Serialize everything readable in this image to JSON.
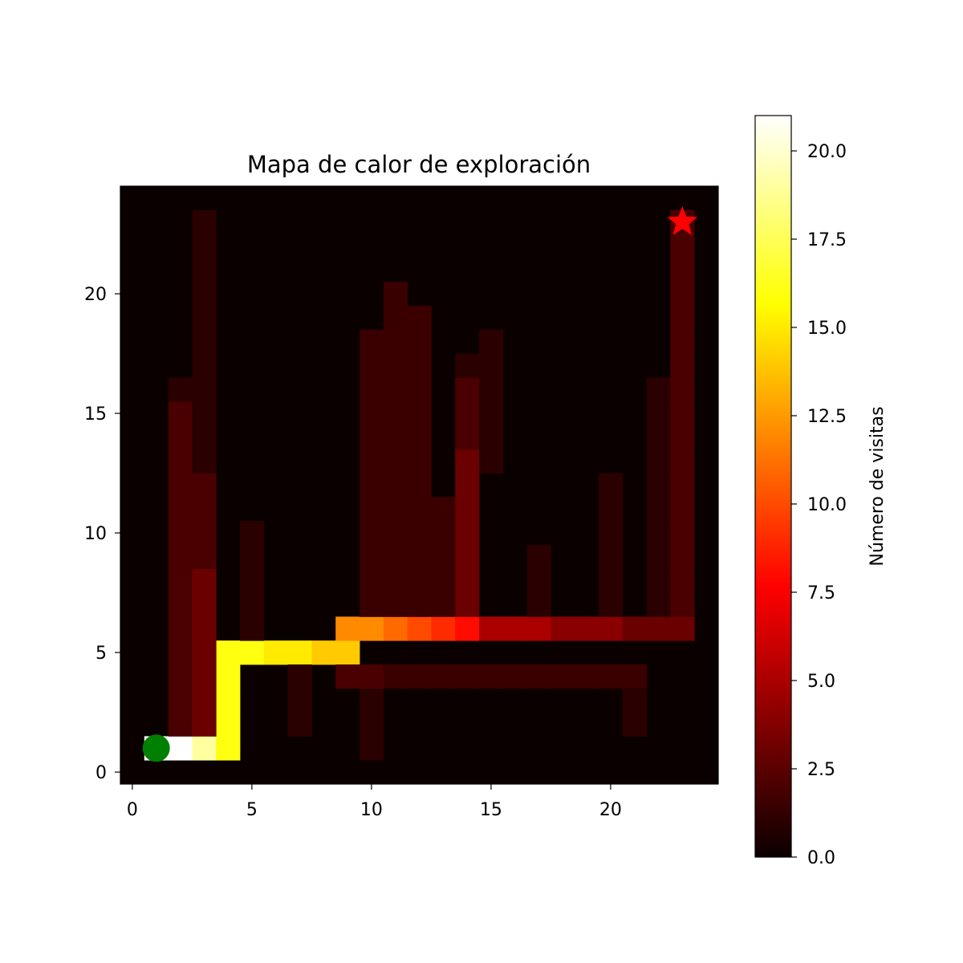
{
  "chart_data": {
    "type": "heatmap",
    "title": "Mapa de calor de exploración",
    "xlabel": "",
    "ylabel": "",
    "xlim": [
      -0.5,
      24.5
    ],
    "ylim": [
      -0.5,
      24.5
    ],
    "x_ticks": [
      0,
      5,
      10,
      15,
      20
    ],
    "y_ticks": [
      0,
      5,
      10,
      15,
      20
    ],
    "x_tick_labels": [
      "0",
      "5",
      "10",
      "15",
      "20"
    ],
    "y_tick_labels": [
      "0",
      "5",
      "10",
      "15",
      "20"
    ],
    "colormap": "hot",
    "vmin": 0,
    "vmax": 21,
    "colorbar": {
      "label": "Número de visitas",
      "ticks": [
        0.0,
        2.5,
        5.0,
        7.5,
        10.0,
        12.5,
        15.0,
        17.5,
        20.0
      ],
      "tick_labels": [
        "0.0",
        "2.5",
        "5.0",
        "7.5",
        "10.0",
        "12.5",
        "15.0",
        "17.5",
        "20.0"
      ]
    },
    "background_value": 0,
    "cells": [
      {
        "x": 1,
        "y": 1,
        "v": 21
      },
      {
        "x": 2,
        "y": 1,
        "v": 21
      },
      {
        "x": 3,
        "y": 1,
        "v": 19
      },
      {
        "x": 4,
        "y": 1,
        "v": 16
      },
      {
        "x": 4,
        "y": 2,
        "v": 16
      },
      {
        "x": 4,
        "y": 3,
        "v": 16
      },
      {
        "x": 4,
        "y": 4,
        "v": 16
      },
      {
        "x": 4,
        "y": 5,
        "v": 16
      },
      {
        "x": 5,
        "y": 5,
        "v": 16
      },
      {
        "x": 6,
        "y": 5,
        "v": 15
      },
      {
        "x": 7,
        "y": 5,
        "v": 15
      },
      {
        "x": 8,
        "y": 5,
        "v": 14
      },
      {
        "x": 9,
        "y": 5,
        "v": 14
      },
      {
        "x": 9,
        "y": 6,
        "v": 12
      },
      {
        "x": 10,
        "y": 6,
        "v": 12
      },
      {
        "x": 11,
        "y": 6,
        "v": 11
      },
      {
        "x": 12,
        "y": 6,
        "v": 10
      },
      {
        "x": 13,
        "y": 6,
        "v": 9
      },
      {
        "x": 14,
        "y": 6,
        "v": 8
      },
      {
        "x": 15,
        "y": 6,
        "v": 5
      },
      {
        "x": 16,
        "y": 6,
        "v": 5
      },
      {
        "x": 17,
        "y": 6,
        "v": 5
      },
      {
        "x": 18,
        "y": 6,
        "v": 4
      },
      {
        "x": 19,
        "y": 6,
        "v": 4
      },
      {
        "x": 20,
        "y": 6,
        "v": 4
      },
      {
        "x": 21,
        "y": 6,
        "v": 3
      },
      {
        "x": 22,
        "y": 6,
        "v": 3
      },
      {
        "x": 23,
        "y": 6,
        "v": 3
      },
      {
        "x": 2,
        "y": 2,
        "v": 2
      },
      {
        "x": 2,
        "y": 3,
        "v": 2
      },
      {
        "x": 2,
        "y": 4,
        "v": 2
      },
      {
        "x": 2,
        "y": 5,
        "v": 2
      },
      {
        "x": 2,
        "y": 6,
        "v": 2
      },
      {
        "x": 2,
        "y": 7,
        "v": 2
      },
      {
        "x": 2,
        "y": 8,
        "v": 2
      },
      {
        "x": 2,
        "y": 9,
        "v": 2
      },
      {
        "x": 2,
        "y": 10,
        "v": 2
      },
      {
        "x": 2,
        "y": 11,
        "v": 2
      },
      {
        "x": 2,
        "y": 12,
        "v": 2
      },
      {
        "x": 2,
        "y": 13,
        "v": 2
      },
      {
        "x": 2,
        "y": 14,
        "v": 2
      },
      {
        "x": 2,
        "y": 15,
        "v": 2
      },
      {
        "x": 2,
        "y": 16,
        "v": 1
      },
      {
        "x": 3,
        "y": 2,
        "v": 3
      },
      {
        "x": 3,
        "y": 3,
        "v": 3
      },
      {
        "x": 3,
        "y": 4,
        "v": 3
      },
      {
        "x": 3,
        "y": 5,
        "v": 3
      },
      {
        "x": 3,
        "y": 6,
        "v": 3
      },
      {
        "x": 3,
        "y": 7,
        "v": 3
      },
      {
        "x": 3,
        "y": 8,
        "v": 3
      },
      {
        "x": 3,
        "y": 9,
        "v": 2
      },
      {
        "x": 3,
        "y": 10,
        "v": 2
      },
      {
        "x": 3,
        "y": 11,
        "v": 2
      },
      {
        "x": 3,
        "y": 12,
        "v": 2
      },
      {
        "x": 3,
        "y": 13,
        "v": 1
      },
      {
        "x": 3,
        "y": 14,
        "v": 1
      },
      {
        "x": 3,
        "y": 15,
        "v": 1
      },
      {
        "x": 3,
        "y": 16,
        "v": 1
      },
      {
        "x": 3,
        "y": 17,
        "v": 1
      },
      {
        "x": 3,
        "y": 18,
        "v": 1
      },
      {
        "x": 3,
        "y": 19,
        "v": 1
      },
      {
        "x": 3,
        "y": 20,
        "v": 1
      },
      {
        "x": 3,
        "y": 21,
        "v": 1
      },
      {
        "x": 3,
        "y": 22,
        "v": 1
      },
      {
        "x": 3,
        "y": 23,
        "v": 1
      },
      {
        "x": 5,
        "y": 6,
        "v": 1
      },
      {
        "x": 5,
        "y": 7,
        "v": 1
      },
      {
        "x": 5,
        "y": 8,
        "v": 1
      },
      {
        "x": 5,
        "y": 9,
        "v": 1
      },
      {
        "x": 5,
        "y": 10,
        "v": 1
      },
      {
        "x": 7,
        "y": 2,
        "v": 1
      },
      {
        "x": 7,
        "y": 3,
        "v": 1
      },
      {
        "x": 7,
        "y": 4,
        "v": 1
      },
      {
        "x": 10,
        "y": 1,
        "v": 1
      },
      {
        "x": 10,
        "y": 2,
        "v": 1
      },
      {
        "x": 10,
        "y": 3,
        "v": 1
      },
      {
        "x": 9,
        "y": 4,
        "v": 2
      },
      {
        "x": 10,
        "y": 4,
        "v": 2
      },
      {
        "x": 11,
        "y": 4,
        "v": 1.5
      },
      {
        "x": 12,
        "y": 4,
        "v": 1.5
      },
      {
        "x": 13,
        "y": 4,
        "v": 1.5
      },
      {
        "x": 14,
        "y": 4,
        "v": 1.5
      },
      {
        "x": 15,
        "y": 4,
        "v": 1.5
      },
      {
        "x": 16,
        "y": 4,
        "v": 1.5
      },
      {
        "x": 17,
        "y": 4,
        "v": 1.5
      },
      {
        "x": 18,
        "y": 4,
        "v": 1.5
      },
      {
        "x": 19,
        "y": 4,
        "v": 1.5
      },
      {
        "x": 20,
        "y": 4,
        "v": 1.5
      },
      {
        "x": 21,
        "y": 4,
        "v": 1.5
      },
      {
        "x": 21,
        "y": 2,
        "v": 1
      },
      {
        "x": 21,
        "y": 3,
        "v": 1
      },
      {
        "x": 10,
        "y": 7,
        "v": 1.5
      },
      {
        "x": 10,
        "y": 8,
        "v": 1.5
      },
      {
        "x": 10,
        "y": 9,
        "v": 1.5
      },
      {
        "x": 10,
        "y": 10,
        "v": 1.5
      },
      {
        "x": 10,
        "y": 11,
        "v": 1.5
      },
      {
        "x": 10,
        "y": 12,
        "v": 1.5
      },
      {
        "x": 10,
        "y": 13,
        "v": 1.5
      },
      {
        "x": 10,
        "y": 14,
        "v": 1.5
      },
      {
        "x": 10,
        "y": 15,
        "v": 1.5
      },
      {
        "x": 10,
        "y": 16,
        "v": 1.5
      },
      {
        "x": 10,
        "y": 17,
        "v": 1.5
      },
      {
        "x": 10,
        "y": 18,
        "v": 1.5
      },
      {
        "x": 11,
        "y": 7,
        "v": 1.5
      },
      {
        "x": 11,
        "y": 8,
        "v": 1.5
      },
      {
        "x": 11,
        "y": 9,
        "v": 1.5
      },
      {
        "x": 11,
        "y": 10,
        "v": 1.5
      },
      {
        "x": 11,
        "y": 11,
        "v": 1.5
      },
      {
        "x": 11,
        "y": 12,
        "v": 1.5
      },
      {
        "x": 11,
        "y": 13,
        "v": 1.5
      },
      {
        "x": 11,
        "y": 14,
        "v": 1.5
      },
      {
        "x": 11,
        "y": 15,
        "v": 1.5
      },
      {
        "x": 11,
        "y": 16,
        "v": 1.5
      },
      {
        "x": 11,
        "y": 17,
        "v": 1.5
      },
      {
        "x": 11,
        "y": 18,
        "v": 1.5
      },
      {
        "x": 11,
        "y": 19,
        "v": 1.5
      },
      {
        "x": 11,
        "y": 20,
        "v": 1.5
      },
      {
        "x": 12,
        "y": 7,
        "v": 1.5
      },
      {
        "x": 12,
        "y": 8,
        "v": 1.5
      },
      {
        "x": 12,
        "y": 9,
        "v": 1.5
      },
      {
        "x": 12,
        "y": 10,
        "v": 1.5
      },
      {
        "x": 12,
        "y": 11,
        "v": 1.5
      },
      {
        "x": 12,
        "y": 12,
        "v": 1.5
      },
      {
        "x": 12,
        "y": 13,
        "v": 1.5
      },
      {
        "x": 12,
        "y": 14,
        "v": 1.5
      },
      {
        "x": 12,
        "y": 15,
        "v": 1.5
      },
      {
        "x": 12,
        "y": 16,
        "v": 1.5
      },
      {
        "x": 12,
        "y": 17,
        "v": 1.5
      },
      {
        "x": 12,
        "y": 18,
        "v": 1.5
      },
      {
        "x": 12,
        "y": 19,
        "v": 1.5
      },
      {
        "x": 13,
        "y": 7,
        "v": 1.5
      },
      {
        "x": 13,
        "y": 8,
        "v": 1.5
      },
      {
        "x": 13,
        "y": 9,
        "v": 1.5
      },
      {
        "x": 13,
        "y": 10,
        "v": 1.5
      },
      {
        "x": 13,
        "y": 11,
        "v": 1.5
      },
      {
        "x": 14,
        "y": 7,
        "v": 3
      },
      {
        "x": 14,
        "y": 8,
        "v": 3
      },
      {
        "x": 14,
        "y": 9,
        "v": 3
      },
      {
        "x": 14,
        "y": 10,
        "v": 3
      },
      {
        "x": 14,
        "y": 11,
        "v": 3
      },
      {
        "x": 14,
        "y": 12,
        "v": 3
      },
      {
        "x": 14,
        "y": 13,
        "v": 3
      },
      {
        "x": 14,
        "y": 14,
        "v": 2
      },
      {
        "x": 14,
        "y": 15,
        "v": 2
      },
      {
        "x": 14,
        "y": 16,
        "v": 2
      },
      {
        "x": 14,
        "y": 17,
        "v": 1
      },
      {
        "x": 15,
        "y": 13,
        "v": 1
      },
      {
        "x": 15,
        "y": 14,
        "v": 1
      },
      {
        "x": 15,
        "y": 15,
        "v": 1
      },
      {
        "x": 15,
        "y": 16,
        "v": 1
      },
      {
        "x": 15,
        "y": 17,
        "v": 1
      },
      {
        "x": 15,
        "y": 18,
        "v": 1
      },
      {
        "x": 17,
        "y": 7,
        "v": 1
      },
      {
        "x": 17,
        "y": 8,
        "v": 1
      },
      {
        "x": 17,
        "y": 9,
        "v": 1
      },
      {
        "x": 20,
        "y": 7,
        "v": 1
      },
      {
        "x": 20,
        "y": 8,
        "v": 1
      },
      {
        "x": 20,
        "y": 9,
        "v": 1
      },
      {
        "x": 20,
        "y": 10,
        "v": 1
      },
      {
        "x": 20,
        "y": 11,
        "v": 1
      },
      {
        "x": 20,
        "y": 12,
        "v": 1
      },
      {
        "x": 22,
        "y": 7,
        "v": 1
      },
      {
        "x": 22,
        "y": 8,
        "v": 1
      },
      {
        "x": 22,
        "y": 9,
        "v": 1
      },
      {
        "x": 22,
        "y": 10,
        "v": 1
      },
      {
        "x": 22,
        "y": 11,
        "v": 1
      },
      {
        "x": 22,
        "y": 12,
        "v": 1
      },
      {
        "x": 22,
        "y": 13,
        "v": 1
      },
      {
        "x": 22,
        "y": 14,
        "v": 1
      },
      {
        "x": 22,
        "y": 15,
        "v": 1
      },
      {
        "x": 22,
        "y": 16,
        "v": 1
      },
      {
        "x": 23,
        "y": 7,
        "v": 2
      },
      {
        "x": 23,
        "y": 8,
        "v": 2
      },
      {
        "x": 23,
        "y": 9,
        "v": 2
      },
      {
        "x": 23,
        "y": 10,
        "v": 2
      },
      {
        "x": 23,
        "y": 11,
        "v": 2
      },
      {
        "x": 23,
        "y": 12,
        "v": 2
      },
      {
        "x": 23,
        "y": 13,
        "v": 2
      },
      {
        "x": 23,
        "y": 14,
        "v": 2
      },
      {
        "x": 23,
        "y": 15,
        "v": 2
      },
      {
        "x": 23,
        "y": 16,
        "v": 2
      },
      {
        "x": 23,
        "y": 17,
        "v": 2
      },
      {
        "x": 23,
        "y": 18,
        "v": 2
      },
      {
        "x": 23,
        "y": 19,
        "v": 2
      },
      {
        "x": 23,
        "y": 20,
        "v": 2
      },
      {
        "x": 23,
        "y": 21,
        "v": 2
      },
      {
        "x": 23,
        "y": 22,
        "v": 2
      },
      {
        "x": 23,
        "y": 23,
        "v": 2
      }
    ],
    "markers": [
      {
        "name": "start",
        "shape": "circle",
        "color": "#008000",
        "x": 1,
        "y": 1
      },
      {
        "name": "goal",
        "shape": "star",
        "color": "#ff0000",
        "x": 23,
        "y": 23
      }
    ]
  }
}
